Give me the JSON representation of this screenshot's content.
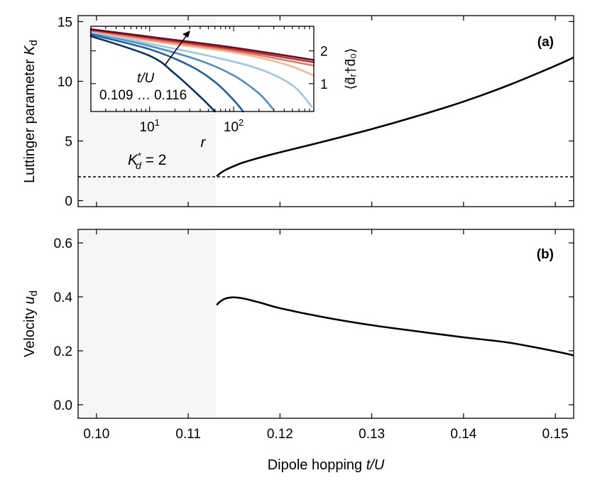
{
  "chart_data": [
    {
      "id": "top",
      "type": "line",
      "panel_label": "(a)",
      "ylabel_main": "Luttinger parameter ",
      "ylabel_sym": "K",
      "ylabel_sub": "d",
      "xlim": [
        0.098,
        0.152
      ],
      "ylim": [
        -0.5,
        15.5
      ],
      "yticks": [
        "0",
        "5",
        "10",
        "15"
      ],
      "yticks_values": [
        0,
        5,
        10,
        15
      ],
      "x_ticks_values": [
        0.1,
        0.11,
        0.12,
        0.13,
        0.14,
        0.15
      ],
      "shaded_region": [
        0.098,
        0.113
      ],
      "reference_line": {
        "y": 2,
        "style": "dashed",
        "label_sym": "K",
        "label_sub": "d",
        "label_sup": "*",
        "label_rest": " = 2"
      },
      "series": [
        {
          "name": "K_d",
          "x": [
            0.1131,
            0.1135,
            0.114,
            0.115,
            0.116,
            0.118,
            0.12,
            0.125,
            0.13,
            0.135,
            0.14,
            0.145,
            0.15,
            0.152
          ],
          "y": [
            2.05,
            2.3,
            2.55,
            2.9,
            3.2,
            3.65,
            4.05,
            5.0,
            6.0,
            7.1,
            8.3,
            9.7,
            11.3,
            12.0
          ]
        }
      ],
      "inset": {
        "type": "line",
        "xscale": "log",
        "xlabel": "r",
        "ylabel": "⟨d̂ᵣ†d̂₀⟩",
        "xlim": [
          2,
          900
        ],
        "ylim": [
          0.15,
          2.75
        ],
        "xticks": [
          "10",
          "10"
        ],
        "xticks_exp": [
          "1",
          "2"
        ],
        "xticks_values": [
          10,
          100
        ],
        "yticks": [
          "1",
          "2"
        ],
        "yticks_values": [
          1,
          2
        ],
        "arrow_label": "t/U",
        "range_label": "0.109 … 0.116",
        "series": [
          {
            "name": "t/U=0.109",
            "color": "#08306b",
            "x": [
              2,
              10,
              20,
              40,
              60
            ],
            "y": [
              2.45,
              1.85,
              1.3,
              0.6,
              0.15
            ]
          },
          {
            "name": "t/U=0.110",
            "color": "#1d5fa6",
            "x": [
              2,
              10,
              30,
              60,
              100,
              130
            ],
            "y": [
              2.5,
              2.05,
              1.55,
              1.05,
              0.5,
              0.15
            ]
          },
          {
            "name": "t/U=0.111",
            "color": "#4a90c6",
            "x": [
              2,
              10,
              40,
              100,
              200,
              300
            ],
            "y": [
              2.55,
              2.15,
              1.7,
              1.25,
              0.7,
              0.2
            ]
          },
          {
            "name": "t/U=0.112",
            "color": "#9ec9e2",
            "x": [
              2,
              10,
              50,
              200,
              500,
              850
            ],
            "y": [
              2.58,
              2.22,
              1.85,
              1.45,
              0.95,
              0.3
            ]
          },
          {
            "name": "t/U=0.113",
            "color": "#f7b89a",
            "x": [
              2,
              10,
              100,
              400,
              900
            ],
            "y": [
              2.6,
              2.3,
              1.95,
              1.6,
              1.25
            ]
          },
          {
            "name": "t/U=0.114",
            "color": "#e07e63",
            "x": [
              2,
              10,
              100,
              900
            ],
            "y": [
              2.62,
              2.35,
              2.0,
              1.55
            ]
          },
          {
            "name": "t/U=0.115",
            "color": "#b8333b",
            "x": [
              2,
              10,
              100,
              900
            ],
            "y": [
              2.64,
              2.4,
              2.05,
              1.65
            ]
          },
          {
            "name": "t/U=0.116",
            "color": "#6b0b22",
            "x": [
              2,
              10,
              100,
              900
            ],
            "y": [
              2.66,
              2.43,
              2.1,
              1.72
            ]
          }
        ]
      }
    },
    {
      "id": "bottom",
      "type": "line",
      "panel_label": "(b)",
      "ylabel_main": "Velocity ",
      "ylabel_sym": "u",
      "ylabel_sub": "d",
      "xlabel_main": "Dipole hopping ",
      "xlabel_sym": "t/U",
      "xlim": [
        0.098,
        0.152
      ],
      "ylim": [
        -0.05,
        0.65
      ],
      "yticks": [
        "0.0",
        "0.2",
        "0.4",
        "0.6"
      ],
      "yticks_values": [
        0.0,
        0.2,
        0.4,
        0.6
      ],
      "xticks": [
        "0.10",
        "0.11",
        "0.12",
        "0.13",
        "0.14",
        "0.15"
      ],
      "xticks_values": [
        0.1,
        0.11,
        0.12,
        0.13,
        0.14,
        0.15
      ],
      "shaded_region": [
        0.098,
        0.113
      ],
      "series": [
        {
          "name": "u_d",
          "x": [
            0.1131,
            0.1135,
            0.114,
            0.1145,
            0.115,
            0.116,
            0.118,
            0.12,
            0.125,
            0.13,
            0.135,
            0.14,
            0.145,
            0.15,
            0.152
          ],
          "y": [
            0.37,
            0.383,
            0.393,
            0.397,
            0.398,
            0.394,
            0.377,
            0.358,
            0.323,
            0.295,
            0.272,
            0.25,
            0.23,
            0.198,
            0.183
          ]
        }
      ]
    }
  ]
}
